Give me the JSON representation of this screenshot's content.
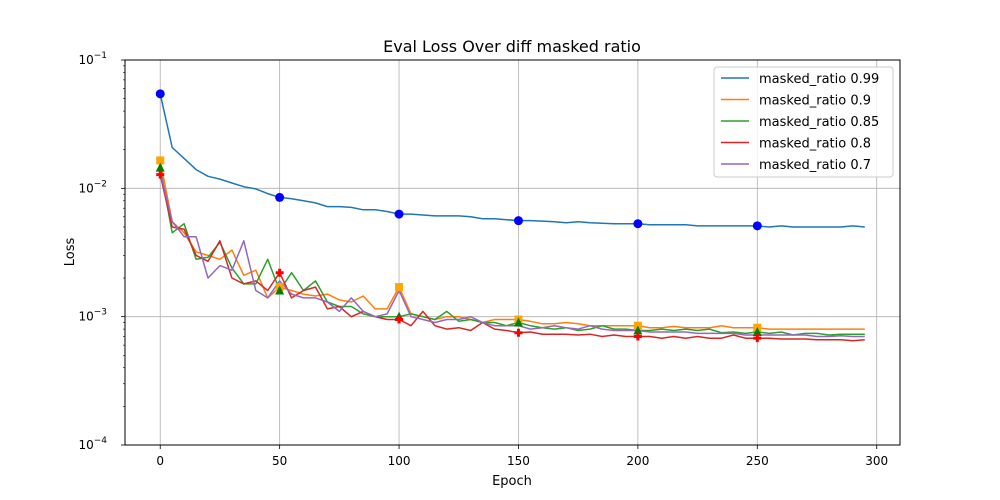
{
  "chart_data": {
    "type": "line",
    "title": "Eval Loss Over diff masked ratio",
    "xlabel": "Epoch",
    "ylabel": "Loss",
    "yscale": "log",
    "xlim": [
      -14.75,
      309.75
    ],
    "ylim": [
      0.0001,
      0.1
    ],
    "xticks": [
      0,
      50,
      100,
      150,
      200,
      250,
      300
    ],
    "xtick_labels": [
      "0",
      "50",
      "100",
      "150",
      "200",
      "250",
      "300"
    ],
    "yticks": [
      0.0001,
      0.001,
      0.01,
      0.1
    ],
    "ytick_labels": [
      {
        "base": "10",
        "exp": "−4"
      },
      {
        "base": "10",
        "exp": "−3"
      },
      {
        "base": "10",
        "exp": "−2"
      },
      {
        "base": "10",
        "exp": "−1"
      }
    ],
    "grid": true,
    "legend_position": "upper right",
    "series": [
      {
        "name": "masked_ratio 0.99",
        "color": "#1f77b4",
        "marker": "circle",
        "marker_color": "#0000ff",
        "x": [
          0,
          5,
          10,
          15,
          20,
          25,
          30,
          35,
          40,
          45,
          50,
          55,
          60,
          65,
          70,
          75,
          80,
          85,
          90,
          95,
          100,
          105,
          110,
          115,
          120,
          125,
          130,
          135,
          140,
          145,
          150,
          155,
          160,
          165,
          170,
          175,
          180,
          185,
          190,
          195,
          200,
          205,
          210,
          215,
          220,
          225,
          230,
          235,
          240,
          245,
          250,
          255,
          260,
          265,
          270,
          275,
          280,
          285,
          290,
          295
        ],
        "y": [
          0.0545,
          0.0208,
          0.0171,
          0.014,
          0.0124,
          0.0118,
          0.011,
          0.0103,
          0.0099,
          0.0091,
          0.0085,
          0.0083,
          0.008,
          0.0077,
          0.0072,
          0.0072,
          0.0071,
          0.0068,
          0.0068,
          0.0066,
          0.0063,
          0.0063,
          0.0062,
          0.0061,
          0.0061,
          0.0061,
          0.006,
          0.0058,
          0.0058,
          0.0057,
          0.0056,
          0.0056,
          0.00555,
          0.0055,
          0.0054,
          0.0055,
          0.0054,
          0.00535,
          0.0053,
          0.0053,
          0.0053,
          0.0052,
          0.0052,
          0.0052,
          0.0052,
          0.0051,
          0.0051,
          0.0051,
          0.0051,
          0.0051,
          0.0051,
          0.005,
          0.0051,
          0.005,
          0.005,
          0.005,
          0.005,
          0.005,
          0.0051,
          0.005
        ],
        "marked_points": {
          "x": [
            0,
            50,
            100,
            150,
            200,
            250
          ],
          "y": [
            0.0545,
            0.0085,
            0.0063,
            0.0056,
            0.0053,
            0.0051
          ]
        }
      },
      {
        "name": "masked_ratio 0.9",
        "color": "#ff7f0e",
        "marker": "square",
        "marker_color": "#ffa500",
        "x": [
          0,
          5,
          10,
          15,
          20,
          25,
          30,
          35,
          40,
          45,
          50,
          55,
          60,
          65,
          70,
          75,
          80,
          85,
          90,
          95,
          100,
          105,
          110,
          115,
          120,
          125,
          130,
          135,
          140,
          145,
          150,
          155,
          160,
          165,
          170,
          175,
          180,
          185,
          190,
          195,
          200,
          205,
          210,
          215,
          220,
          225,
          230,
          235,
          240,
          245,
          250,
          255,
          260,
          265,
          270,
          275,
          280,
          285,
          290,
          295
        ],
        "y": [
          0.0165,
          0.0055,
          0.0045,
          0.0032,
          0.003,
          0.0028,
          0.0033,
          0.0021,
          0.0023,
          0.0014,
          0.0017,
          0.0016,
          0.0015,
          0.00145,
          0.0015,
          0.00135,
          0.0013,
          0.00145,
          0.00115,
          0.00115,
          0.0017,
          0.00105,
          0.001,
          0.00095,
          0.001,
          0.001,
          0.00095,
          0.0009,
          0.00095,
          0.00095,
          0.00095,
          0.00092,
          0.00088,
          0.00088,
          0.0009,
          0.00088,
          0.00085,
          0.00085,
          0.00085,
          0.00085,
          0.00085,
          0.00082,
          0.00082,
          0.00084,
          0.00082,
          0.00082,
          0.00082,
          0.00085,
          0.00082,
          0.00082,
          0.00082,
          0.0008,
          0.0008,
          0.0008,
          0.0008,
          0.0008,
          0.0008,
          0.0008,
          0.0008,
          0.0008
        ],
        "marked_points": {
          "x": [
            0,
            50,
            100,
            150,
            200,
            250
          ],
          "y": [
            0.0165,
            0.0017,
            0.0017,
            0.00095,
            0.00085,
            0.00082
          ]
        }
      },
      {
        "name": "masked_ratio 0.85",
        "color": "#2ca02c",
        "marker": "triangle",
        "marker_color": "#008000",
        "x": [
          0,
          5,
          10,
          15,
          20,
          25,
          30,
          35,
          40,
          45,
          50,
          55,
          60,
          65,
          70,
          75,
          80,
          85,
          90,
          95,
          100,
          105,
          110,
          115,
          120,
          125,
          130,
          135,
          140,
          145,
          150,
          155,
          160,
          165,
          170,
          175,
          180,
          185,
          190,
          195,
          200,
          205,
          210,
          215,
          220,
          225,
          230,
          235,
          240,
          245,
          250,
          255,
          260,
          265,
          270,
          275,
          280,
          285,
          290,
          295
        ],
        "y": [
          0.0145,
          0.0045,
          0.0053,
          0.0028,
          0.0029,
          0.0038,
          0.0024,
          0.0018,
          0.0018,
          0.0028,
          0.0016,
          0.0022,
          0.0016,
          0.0019,
          0.0013,
          0.0012,
          0.0012,
          0.00105,
          0.001,
          0.001,
          0.001,
          0.00105,
          0.001,
          0.00095,
          0.0011,
          0.00092,
          0.00095,
          0.0009,
          0.0009,
          0.00085,
          0.0009,
          0.00085,
          0.00082,
          0.0008,
          0.00082,
          0.00078,
          0.0008,
          0.00085,
          0.0008,
          0.0008,
          0.00078,
          0.00078,
          0.0008,
          0.00078,
          0.0008,
          0.00078,
          0.0008,
          0.00075,
          0.00076,
          0.00074,
          0.00076,
          0.00074,
          0.00076,
          0.00072,
          0.00074,
          0.00074,
          0.00072,
          0.00073,
          0.00073,
          0.00073
        ],
        "marked_points": {
          "x": [
            0,
            50,
            100,
            150,
            200,
            250
          ],
          "y": [
            0.0145,
            0.0016,
            0.001,
            0.0009,
            0.00078,
            0.00076
          ]
        }
      },
      {
        "name": "masked_ratio 0.8",
        "color": "#d62728",
        "marker": "plus",
        "marker_color": "#ff0000",
        "x": [
          0,
          5,
          10,
          15,
          20,
          25,
          30,
          35,
          40,
          45,
          50,
          55,
          60,
          65,
          70,
          75,
          80,
          85,
          90,
          95,
          100,
          105,
          110,
          115,
          120,
          125,
          130,
          135,
          140,
          145,
          150,
          155,
          160,
          165,
          170,
          175,
          180,
          185,
          190,
          195,
          200,
          205,
          210,
          215,
          220,
          225,
          230,
          235,
          240,
          245,
          250,
          255,
          260,
          265,
          270,
          275,
          280,
          285,
          290,
          295
        ],
        "y": [
          0.0128,
          0.005,
          0.0048,
          0.003,
          0.0027,
          0.0039,
          0.002,
          0.0018,
          0.0019,
          0.0016,
          0.0022,
          0.0014,
          0.0016,
          0.0017,
          0.00115,
          0.0012,
          0.001,
          0.0011,
          0.001,
          0.00095,
          0.00095,
          0.00085,
          0.0011,
          0.00085,
          0.0008,
          0.00082,
          0.00078,
          0.0009,
          0.0008,
          0.00078,
          0.00075,
          0.00076,
          0.00073,
          0.00073,
          0.00073,
          0.00072,
          0.00073,
          0.0007,
          0.00072,
          0.0007,
          0.0007,
          0.0007,
          0.00068,
          0.0007,
          0.00068,
          0.0007,
          0.00068,
          0.00068,
          0.00072,
          0.00068,
          0.00068,
          0.00068,
          0.00067,
          0.00067,
          0.00067,
          0.00066,
          0.00066,
          0.00066,
          0.00065,
          0.00066
        ],
        "marked_points": {
          "x": [
            0,
            50,
            100,
            150,
            200,
            250
          ],
          "y": [
            0.0128,
            0.0022,
            0.00095,
            0.00075,
            0.0007,
            0.00068
          ]
        }
      },
      {
        "name": "masked_ratio 0.7",
        "color": "#9467bd",
        "x": [
          0,
          5,
          10,
          15,
          20,
          25,
          30,
          35,
          40,
          45,
          50,
          55,
          60,
          65,
          70,
          75,
          80,
          85,
          90,
          95,
          100,
          105,
          110,
          115,
          120,
          125,
          130,
          135,
          140,
          145,
          150,
          155,
          160,
          165,
          170,
          175,
          180,
          185,
          190,
          195,
          200,
          205,
          210,
          215,
          220,
          225,
          230,
          235,
          240,
          245,
          250,
          255,
          260,
          265,
          270,
          275,
          280,
          285,
          290,
          295
        ],
        "y": [
          0.0135,
          0.0055,
          0.0042,
          0.0042,
          0.002,
          0.0025,
          0.0023,
          0.0039,
          0.0016,
          0.0014,
          0.0019,
          0.0015,
          0.0014,
          0.0014,
          0.0013,
          0.0011,
          0.0014,
          0.0011,
          0.001,
          0.00105,
          0.0016,
          0.001,
          0.00095,
          0.0009,
          0.00095,
          0.00095,
          0.001,
          0.0009,
          0.00085,
          0.00085,
          0.00085,
          0.0008,
          0.00082,
          0.00085,
          0.00082,
          0.0008,
          0.00085,
          0.0008,
          0.00078,
          0.00078,
          0.00078,
          0.00076,
          0.00076,
          0.00076,
          0.00076,
          0.00074,
          0.00074,
          0.00074,
          0.00074,
          0.00072,
          0.00072,
          0.00072,
          0.00072,
          0.00072,
          0.00072,
          0.0007,
          0.0007,
          0.00071,
          0.0007,
          0.0007
        ]
      }
    ]
  }
}
